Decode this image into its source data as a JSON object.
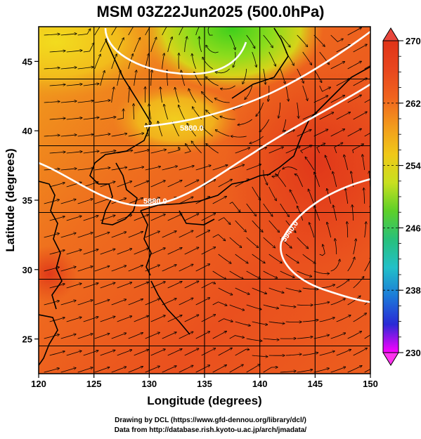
{
  "title": "MSM 03Z22Jun2025 (500.0hPa)",
  "map": {
    "x_axis": {
      "label": "Longitude (degrees)",
      "min": 120,
      "max": 150,
      "ticks": [
        "120",
        "125",
        "130",
        "135",
        "140",
        "145",
        "150"
      ]
    },
    "y_axis": {
      "label": "Latitude  (degrees)",
      "min": 22.5,
      "max": 47.5,
      "ticks": [
        "25",
        "30",
        "35",
        "40",
        "45"
      ]
    },
    "contours": [
      {
        "label": "5880.0"
      },
      {
        "label": "5880.0"
      },
      {
        "label": "5940.0"
      }
    ]
  },
  "colorbar": {
    "min": 230,
    "max": 270,
    "ticks": [
      "270",
      "262",
      "254",
      "246",
      "238",
      "230"
    ],
    "colors": [
      "#ff00ff",
      "#2a2ad6",
      "#1c7bd8",
      "#22c0c8",
      "#28c07a",
      "#5ed028",
      "#c8e020",
      "#f0c818",
      "#f29a1c",
      "#f0641e",
      "#e8461e",
      "#e03418"
    ]
  },
  "credits": {
    "line1": "Drawing by DCL (https://www.gfd-dennou.org/library/dcl/)",
    "line2": "Data from http://database.rish.kyoto-u.ac.jp/arch/jmadata/"
  }
}
